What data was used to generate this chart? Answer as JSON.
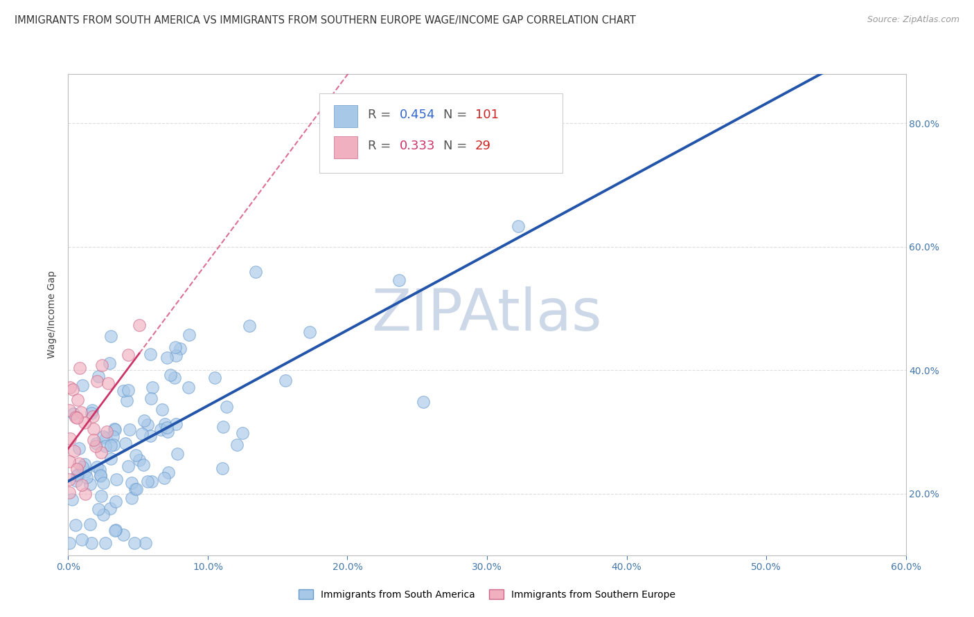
{
  "title": "IMMIGRANTS FROM SOUTH AMERICA VS IMMIGRANTS FROM SOUTHERN EUROPE WAGE/INCOME GAP CORRELATION CHART",
  "source": "Source: ZipAtlas.com",
  "ylabel": "Wage/Income Gap",
  "yticks": [
    0.2,
    0.4,
    0.6,
    0.8
  ],
  "ytick_labels": [
    "20.0%",
    "40.0%",
    "60.0%",
    "80.0%"
  ],
  "xlim": [
    0.0,
    0.6
  ],
  "ylim": [
    0.1,
    0.88
  ],
  "xticks": [
    0.0,
    0.1,
    0.2,
    0.3,
    0.4,
    0.5,
    0.6
  ],
  "xtick_labels": [
    "0.0%",
    "10.0%",
    "20.0%",
    "30.0%",
    "40.0%",
    "50.0%",
    "60.0%"
  ],
  "series1": {
    "name": "Immigrants from South America",
    "R": 0.454,
    "N": 101,
    "color": "#a8c8e8",
    "edge_color": "#6699cc",
    "line_color": "#2255aa",
    "line_style": "solid"
  },
  "series2": {
    "name": "Immigrants from Southern Europe",
    "R": 0.333,
    "N": 29,
    "color": "#f0b0c0",
    "edge_color": "#cc6688",
    "line_color": "#cc3366",
    "line_style": "solid",
    "line_ext_style": "dashed"
  },
  "watermark": "ZIPAtlas",
  "watermark_color": "#ccd8e8",
  "background_color": "#ffffff",
  "grid_color": "#dddddd",
  "title_fontsize": 10.5,
  "axis_label_fontsize": 10
}
